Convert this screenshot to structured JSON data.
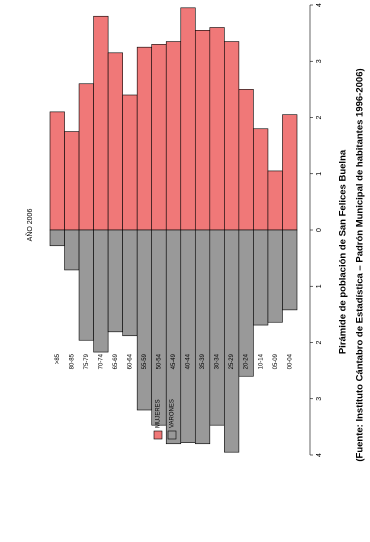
{
  "chart_data": {
    "type": "pyramid",
    "title": "AÑO 2006",
    "caption": "Pirámide de población de San Felices Buelna",
    "source": "(Fuente: Instituto Cántabro de Estadística – Padrón Municipal de habitantes 1996-2006)",
    "categories": [
      ">85",
      "80-85",
      "75-79",
      "70-74",
      "65-69",
      "60-64",
      "55-59",
      "50-54",
      "45-49",
      "40-44",
      "35-39",
      "30-34",
      "25-29",
      "20-24",
      "10-14",
      "05-09",
      "00-04"
    ],
    "series": [
      {
        "name": "MUJERES",
        "color": "#f07878",
        "side": "right",
        "values": [
          2.1,
          1.75,
          2.6,
          3.8,
          3.15,
          2.4,
          3.25,
          3.3,
          3.35,
          3.95,
          3.55,
          3.6,
          3.35,
          2.5,
          1.8,
          1.05,
          2.05
        ]
      },
      {
        "name": "VARONES",
        "color": "#999999",
        "side": "left",
        "values": [
          0.28,
          0.71,
          1.96,
          2.17,
          1.81,
          1.88,
          3.2,
          3.47,
          3.8,
          3.78,
          3.8,
          3.47,
          3.95,
          2.6,
          1.69,
          1.64,
          1.42
        ]
      }
    ],
    "xlim": [
      -4,
      4
    ],
    "xticks": [
      {
        "value": -4,
        "label": "4"
      },
      {
        "value": -3,
        "label": "3"
      },
      {
        "value": -2,
        "label": "2"
      },
      {
        "value": -1,
        "label": "1"
      },
      0,
      1,
      2,
      3,
      4
    ]
  }
}
